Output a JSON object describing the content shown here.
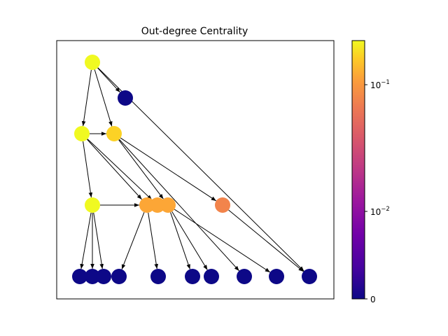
{
  "title": "Out-degree Centrality",
  "colorbar": {
    "ticks": [
      {
        "base": "10",
        "exp": "−1",
        "value": 0.1
      },
      {
        "base": "10",
        "exp": "−2",
        "value": 0.01
      },
      {
        "plain": "0",
        "value": 0
      }
    ]
  },
  "node_colors": {
    "high": "#f0f921",
    "high2": "#fcd225",
    "mid": "#fca636",
    "midlow": "#f2844b",
    "low": "#0d0887"
  },
  "graph": {
    "nodes": [
      {
        "id": "n0",
        "color": "#f0f921"
      },
      {
        "id": "n1",
        "color": "#0d0887"
      },
      {
        "id": "n2",
        "color": "#f0f921"
      },
      {
        "id": "n3",
        "color": "#fcd225"
      },
      {
        "id": "n4",
        "color": "#f0f921"
      },
      {
        "id": "n5",
        "color": "#fca636"
      },
      {
        "id": "n6",
        "color": "#fca636"
      },
      {
        "id": "n7",
        "color": "#fca636"
      },
      {
        "id": "n8",
        "color": "#f2844b"
      },
      {
        "id": "b0",
        "color": "#0d0887"
      },
      {
        "id": "b1",
        "color": "#0d0887"
      },
      {
        "id": "b2",
        "color": "#0d0887"
      },
      {
        "id": "b3",
        "color": "#0d0887"
      },
      {
        "id": "b4",
        "color": "#0d0887"
      },
      {
        "id": "b5",
        "color": "#0d0887"
      },
      {
        "id": "b6",
        "color": "#0d0887"
      },
      {
        "id": "b7",
        "color": "#0d0887"
      },
      {
        "id": "b8",
        "color": "#0d0887"
      },
      {
        "id": "b9",
        "color": "#0d0887"
      }
    ],
    "edges": [
      [
        "n0",
        "n1"
      ],
      [
        "n0",
        "n2"
      ],
      [
        "n0",
        "n3"
      ],
      [
        "n0",
        "b9"
      ],
      [
        "n2",
        "n3"
      ],
      [
        "n2",
        "n4"
      ],
      [
        "n2",
        "n5"
      ],
      [
        "n2",
        "n6"
      ],
      [
        "n3",
        "n7"
      ],
      [
        "n3",
        "n8"
      ],
      [
        "n3",
        "b7"
      ],
      [
        "n4",
        "b0"
      ],
      [
        "n4",
        "b1"
      ],
      [
        "n4",
        "b2"
      ],
      [
        "n4",
        "n5"
      ],
      [
        "n5",
        "b3"
      ],
      [
        "n5",
        "b4"
      ],
      [
        "n7",
        "b5"
      ],
      [
        "n7",
        "b6"
      ],
      [
        "n7",
        "b8"
      ],
      [
        "n8",
        "b9"
      ]
    ]
  }
}
